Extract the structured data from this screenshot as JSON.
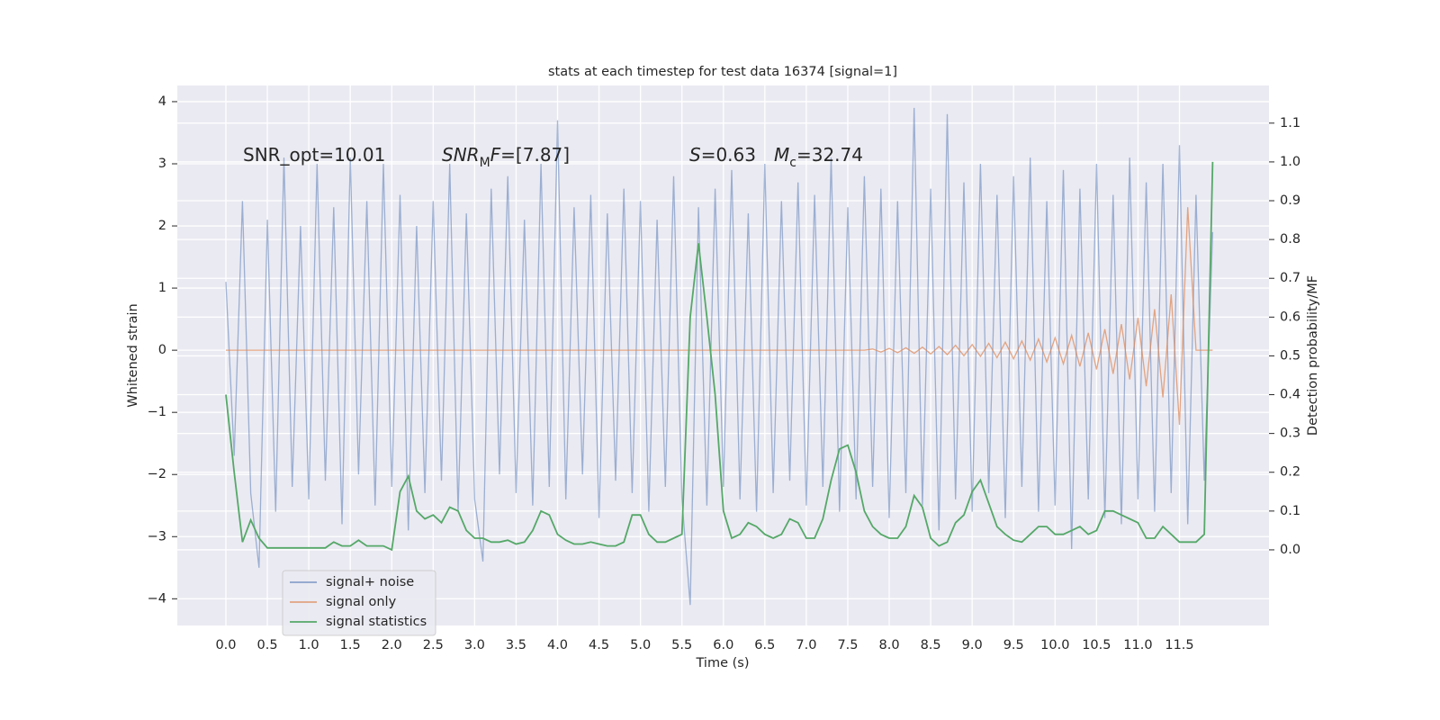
{
  "chart_data": {
    "type": "line",
    "title": "stats at each timestep for test data 16374 [signal=1]",
    "x_label": "Time (s)",
    "y_label": "Whitened strain",
    "y2_label": "Detection probability/MF",
    "annotations": [
      [
        {
          "text": "SNR_opt=10.01"
        }
      ],
      [
        {
          "text": "SNR",
          "italic": true
        },
        {
          "text": "M",
          "sub": true
        },
        {
          "text": "F",
          "italic": true
        },
        {
          "text": "=[7.87]"
        }
      ],
      [
        {
          "text": "S",
          "italic": true
        },
        {
          "text": "=0.63"
        },
        {
          "text": "M",
          "italic": true
        },
        {
          "text": "c",
          "sub": true
        },
        {
          "text": "=32.74"
        }
      ]
    ],
    "x": [
      0,
      0.1,
      0.2,
      0.3,
      0.4,
      0.5,
      0.6,
      0.7,
      0.8,
      0.9,
      1,
      1.1,
      1.2,
      1.3,
      1.4,
      1.5,
      1.6,
      1.7,
      1.8,
      1.9,
      2,
      2.1,
      2.2,
      2.3,
      2.4,
      2.5,
      2.6,
      2.7,
      2.8,
      2.9,
      3,
      3.1,
      3.2,
      3.3,
      3.4,
      3.5,
      3.6,
      3.7,
      3.8,
      3.9,
      4,
      4.1,
      4.2,
      4.3,
      4.4,
      4.5,
      4.6,
      4.7,
      4.8,
      4.9,
      5,
      5.1,
      5.2,
      5.3,
      5.4,
      5.5,
      5.6,
      5.7,
      5.8,
      5.9,
      6,
      6.1,
      6.2,
      6.3,
      6.4,
      6.5,
      6.6,
      6.7,
      6.8,
      6.9,
      7,
      7.1,
      7.2,
      7.3,
      7.4,
      7.5,
      7.6,
      7.7,
      7.8,
      7.9,
      8,
      8.1,
      8.2,
      8.3,
      8.4,
      8.5,
      8.6,
      8.7,
      8.8,
      8.9,
      9,
      9.1,
      9.2,
      9.3,
      9.4,
      9.5,
      9.6,
      9.7,
      9.8,
      9.9,
      10,
      10.1,
      10.2,
      10.3,
      10.4,
      10.5,
      10.6,
      10.7,
      10.8,
      10.9,
      11,
      11.1,
      11.2,
      11.3,
      11.4,
      11.5,
      11.6,
      11.7,
      11.8,
      11.9
    ],
    "series": [
      {
        "name": "signal+ noise",
        "color": "#4c72b0",
        "values": [
          1.1,
          -1.7,
          2.4,
          -2.3,
          -3.5,
          2.1,
          -2.6,
          3.1,
          -2.2,
          2.0,
          -2.4,
          3.0,
          -2.1,
          2.3,
          -2.8,
          3.1,
          -2.0,
          2.4,
          -2.5,
          3.0,
          -2.2,
          2.5,
          -2.9,
          2.0,
          -2.3,
          2.4,
          -2.1,
          3.0,
          -2.6,
          2.2,
          -2.4,
          -3.4,
          2.6,
          -2.0,
          2.8,
          -2.3,
          2.1,
          -2.5,
          3.0,
          -2.2,
          3.7,
          -2.4,
          2.3,
          -2.0,
          2.5,
          -2.7,
          2.2,
          -2.1,
          2.6,
          -2.3,
          2.4,
          -2.6,
          2.1,
          -2.2,
          2.8,
          -2.4,
          -4.1,
          2.3,
          -2.5,
          2.6,
          -2.2,
          2.9,
          -2.4,
          2.2,
          -2.6,
          3.0,
          -2.3,
          2.4,
          -2.1,
          2.7,
          -2.5,
          2.5,
          -2.2,
          3.1,
          -2.6,
          2.3,
          -2.4,
          2.8,
          -2.2,
          2.6,
          -2.7,
          2.4,
          -2.3,
          3.9,
          -2.5,
          2.6,
          -2.9,
          3.8,
          -2.4,
          2.7,
          -2.6,
          3.0,
          -2.3,
          2.5,
          -2.7,
          2.8,
          -2.2,
          3.1,
          -2.6,
          2.4,
          -2.5,
          2.9,
          -3.2,
          2.6,
          -2.4,
          3.0,
          -2.7,
          2.5,
          -2.8,
          3.1,
          -2.4,
          2.7,
          -2.6,
          3.0,
          -2.3,
          3.3,
          -2.8,
          2.5,
          -2.1,
          1.9
        ]
      },
      {
        "name": "signal only",
        "color": "#dd8452",
        "values": [
          0,
          0,
          0,
          0,
          0,
          0,
          0,
          0,
          0,
          0,
          0,
          0,
          0,
          0,
          0,
          0,
          0,
          0,
          0,
          0,
          0,
          0,
          0,
          0,
          0,
          0,
          0,
          0,
          0,
          0,
          0,
          0,
          0,
          0,
          0,
          0,
          0,
          0,
          0,
          0,
          0,
          0,
          0,
          0,
          0,
          0,
          0,
          0,
          0,
          0,
          0,
          0,
          0,
          0,
          0,
          0,
          0,
          0,
          0,
          0,
          0,
          0,
          0,
          0,
          0,
          0,
          0,
          0,
          0,
          0,
          0,
          0,
          0,
          0,
          0,
          0,
          0,
          0,
          0.02,
          -0.03,
          0.03,
          -0.04,
          0.04,
          -0.05,
          0.05,
          -0.06,
          0.06,
          -0.07,
          0.08,
          -0.09,
          0.09,
          -0.1,
          0.11,
          -0.12,
          0.13,
          -0.14,
          0.15,
          -0.16,
          0.18,
          -0.19,
          0.2,
          -0.22,
          0.24,
          -0.26,
          0.28,
          -0.31,
          0.34,
          -0.38,
          0.42,
          -0.47,
          0.52,
          -0.58,
          0.66,
          -0.76,
          0.9,
          -1.2,
          2.3,
          0,
          0,
          0
        ]
      },
      {
        "name": "signal statistics",
        "color": "#55a868",
        "axis": "y2",
        "values": [
          0.4,
          0.2,
          0.02,
          0.077,
          0.03,
          0.005,
          0.005,
          0.005,
          0.005,
          0.005,
          0.005,
          0.005,
          0.005,
          0.02,
          0.01,
          0.01,
          0.025,
          0.01,
          0.01,
          0.01,
          0,
          0.15,
          0.19,
          0.1,
          0.08,
          0.09,
          0.07,
          0.11,
          0.1,
          0.05,
          0.03,
          0.03,
          0.02,
          0.02,
          0.025,
          0.015,
          0.02,
          0.05,
          0.1,
          0.09,
          0.04,
          0.025,
          0.015,
          0.015,
          0.02,
          0.015,
          0.01,
          0.01,
          0.02,
          0.09,
          0.09,
          0.04,
          0.02,
          0.02,
          0.03,
          0.04,
          0.6,
          0.79,
          0.6,
          0.4,
          0.1,
          0.03,
          0.04,
          0.07,
          0.06,
          0.04,
          0.03,
          0.04,
          0.08,
          0.07,
          0.03,
          0.03,
          0.08,
          0.18,
          0.26,
          0.27,
          0.2,
          0.1,
          0.06,
          0.04,
          0.03,
          0.03,
          0.06,
          0.14,
          0.11,
          0.03,
          0.01,
          0.02,
          0.07,
          0.09,
          0.15,
          0.18,
          0.12,
          0.06,
          0.04,
          0.025,
          0.02,
          0.04,
          0.06,
          0.06,
          0.04,
          0.04,
          0.05,
          0.06,
          0.04,
          0.05,
          0.1,
          0.1,
          0.09,
          0.08,
          0.07,
          0.03,
          0.03,
          0.06,
          0.04,
          0.02,
          0.02,
          0.02,
          0.04,
          1.0
        ]
      }
    ],
    "xlim": [
      -0.586,
      12.58
    ],
    "xticks": [
      {
        "value": 0,
        "label": "0.0"
      },
      0.5,
      {
        "value": 1,
        "label": "1.0"
      },
      1.5,
      {
        "value": 2,
        "label": "2.0"
      },
      2.5,
      {
        "value": 3,
        "label": "3.0"
      },
      3.5,
      {
        "value": 4,
        "label": "4.0"
      },
      4.5,
      {
        "value": 5,
        "label": "5.0"
      },
      5.5,
      {
        "value": 6,
        "label": "6.0"
      },
      6.5,
      {
        "value": 7,
        "label": "7.0"
      },
      7.5,
      {
        "value": 8,
        "label": "8.0"
      },
      8.5,
      {
        "value": 9,
        "label": "9.0"
      },
      9.5,
      {
        "value": 10,
        "label": "10.0"
      },
      10.5,
      {
        "value": 11,
        "label": "11.0"
      },
      11.5
    ],
    "ylim": [
      -4.43,
      4.26
    ],
    "yticks": [
      {
        "value": -4,
        "label": "−4"
      },
      {
        "value": -3,
        "label": "−3"
      },
      {
        "value": -2,
        "label": "−2"
      },
      {
        "value": -1,
        "label": "−1"
      },
      0,
      1,
      2,
      3,
      4
    ],
    "y2lim": [
      -0.195,
      1.197
    ],
    "y2ticks": [
      {
        "value": 0,
        "label": "0.0"
      },
      0.1,
      0.2,
      0.3,
      0.4,
      0.5,
      0.6,
      0.7,
      0.8,
      0.9,
      {
        "value": 1,
        "label": "1.0"
      },
      1.1
    ],
    "grid": true,
    "legend": "lower left"
  }
}
